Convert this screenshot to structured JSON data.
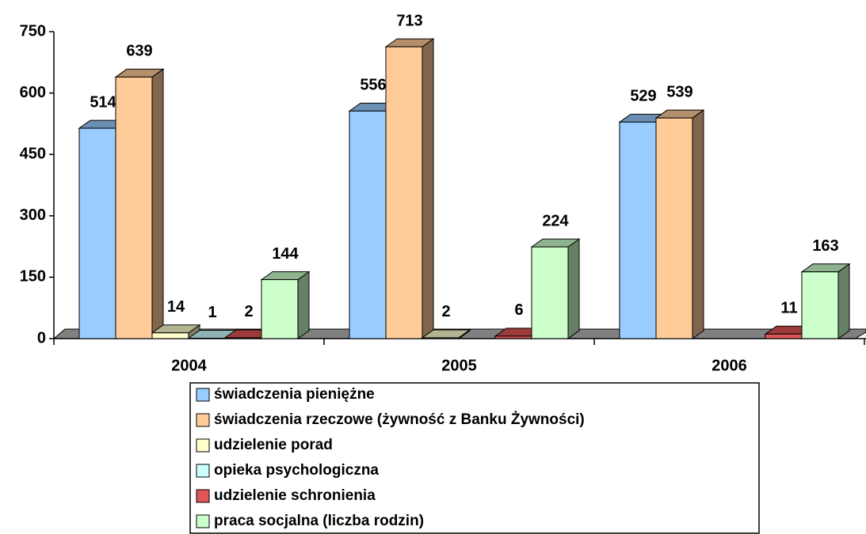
{
  "chart_data": {
    "type": "bar3d",
    "categories": [
      "2004",
      "2005",
      "2006"
    ],
    "series": [
      {
        "name": "świadczenia pieniężne",
        "color": "#99ccff",
        "values": [
          514,
          556,
          529
        ]
      },
      {
        "name": "świadczenia rzeczowe (żywność z Banku Żywności)",
        "color": "#ffcc99",
        "values": [
          639,
          713,
          539
        ]
      },
      {
        "name": "udzielenie porad",
        "color": "#ffffcc",
        "values": [
          14,
          2,
          null
        ]
      },
      {
        "name": "opieka psychologiczna",
        "color": "#ccffff",
        "values": [
          1,
          null,
          null
        ]
      },
      {
        "name": "udzielenie schronienia",
        "color": "#e05555",
        "values": [
          2,
          6,
          11
        ]
      },
      {
        "name": "praca socjalna (liczba rodzin)",
        "color": "#ccffcc",
        "values": [
          144,
          224,
          163
        ]
      }
    ],
    "ylim": [
      0,
      750
    ],
    "yticks": [
      0,
      150,
      300,
      450,
      600,
      750
    ],
    "grid": false,
    "legend": "bottom"
  }
}
